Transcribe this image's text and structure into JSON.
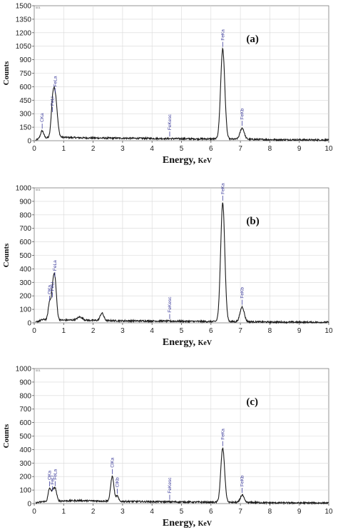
{
  "chart_data": [
    {
      "type": "line",
      "panel_label": "(a)",
      "corner_label": "001",
      "xlabel": "Energy,",
      "xunit": "KeV",
      "ylabel": "Counts",
      "xlim": [
        0,
        10
      ],
      "ylim": [
        0,
        1500
      ],
      "xticks": [
        "0",
        "1",
        "2",
        "3",
        "4",
        "5",
        "6",
        "7",
        "8",
        "9",
        "10"
      ],
      "yticks": [
        "0",
        "150",
        "300",
        "450",
        "600",
        "750",
        "900",
        "1050",
        "1200",
        "1350",
        "1500"
      ],
      "baseline": [
        [
          0.05,
          5
        ],
        [
          0.2,
          30
        ],
        [
          1.0,
          38
        ],
        [
          1.5,
          33
        ],
        [
          2.0,
          30
        ],
        [
          3.0,
          28
        ],
        [
          4.0,
          25
        ],
        [
          5.0,
          22
        ],
        [
          6.0,
          20
        ],
        [
          7.5,
          15
        ],
        [
          8.0,
          12
        ],
        [
          9.0,
          10
        ],
        [
          10.0,
          8
        ]
      ],
      "peaks": [
        {
          "label": "CKa",
          "x": 0.27,
          "y": 80,
          "w": 0.05
        },
        {
          "label": "FeLl",
          "x": 0.62,
          "y": 260,
          "w": 0.05
        },
        {
          "label": "FeLa",
          "x": 0.71,
          "y": 470,
          "w": 0.07
        },
        {
          "label": "FeKesc",
          "x": 4.6,
          "y": 0,
          "w": 0.1
        },
        {
          "label": "FeKa",
          "x": 6.4,
          "y": 1000,
          "w": 0.07
        },
        {
          "label": "FeKb",
          "x": 7.06,
          "y": 125,
          "w": 0.07
        }
      ]
    },
    {
      "type": "line",
      "panel_label": "(b)",
      "corner_label": "001",
      "xlabel": "Energy,",
      "xunit": "KeV",
      "ylabel": "Counts",
      "xlim": [
        0,
        10
      ],
      "ylim": [
        0,
        1000
      ],
      "xticks": [
        "0",
        "1",
        "2",
        "3",
        "4",
        "5",
        "6",
        "7",
        "8",
        "9",
        "10"
      ],
      "yticks": [
        "0",
        "100",
        "200",
        "300",
        "400",
        "500",
        "600",
        "700",
        "800",
        "900",
        "1000"
      ],
      "baseline": [
        [
          0.05,
          5
        ],
        [
          0.3,
          25
        ],
        [
          1.0,
          20
        ],
        [
          1.5,
          22
        ],
        [
          2.0,
          18
        ],
        [
          3.0,
          15
        ],
        [
          4.0,
          14
        ],
        [
          5.0,
          12
        ],
        [
          6.0,
          10
        ],
        [
          7.5,
          8
        ],
        [
          8.0,
          6
        ],
        [
          9.0,
          5
        ],
        [
          10.0,
          4
        ]
      ],
      "extra_peaks": [
        {
          "x": 1.55,
          "y": 22,
          "w": 0.08
        },
        {
          "x": 2.3,
          "y": 55,
          "w": 0.06
        }
      ],
      "peaks": [
        {
          "label": "OKa",
          "x": 0.52,
          "y": 125,
          "w": 0.045
        },
        {
          "label": "FeLl",
          "x": 0.62,
          "y": 150,
          "w": 0.045
        },
        {
          "label": "FeLa",
          "x": 0.7,
          "y": 300,
          "w": 0.055
        },
        {
          "label": "FeKesc",
          "x": 4.6,
          "y": 0,
          "w": 0.1
        },
        {
          "label": "FeKa",
          "x": 6.4,
          "y": 880,
          "w": 0.07
        },
        {
          "label": "FeKb",
          "x": 7.06,
          "y": 110,
          "w": 0.07
        }
      ]
    },
    {
      "type": "line",
      "panel_label": "(c)",
      "corner_label": "001",
      "xlabel": "Energy,",
      "xunit": "KeV",
      "ylabel": "Counts",
      "xlim": [
        0,
        10
      ],
      "ylim": [
        0,
        1000
      ],
      "xticks": [
        "0",
        "1",
        "2",
        "3",
        "4",
        "5",
        "6",
        "7",
        "8",
        "9",
        "10"
      ],
      "yticks": [
        "0",
        "100",
        "200",
        "300",
        "400",
        "500",
        "600",
        "700",
        "800",
        "900",
        "1000"
      ],
      "baseline": [
        [
          0.05,
          5
        ],
        [
          0.3,
          15
        ],
        [
          1.0,
          20
        ],
        [
          1.5,
          22
        ],
        [
          2.0,
          20
        ],
        [
          3.0,
          16
        ],
        [
          4.0,
          14
        ],
        [
          5.0,
          12
        ],
        [
          6.0,
          10
        ],
        [
          7.5,
          8
        ],
        [
          8.0,
          6
        ],
        [
          9.0,
          5
        ],
        [
          10.0,
          4
        ]
      ],
      "peaks": [
        {
          "label": "OKa",
          "x": 0.52,
          "y": 95,
          "w": 0.045
        },
        {
          "label": "FeLl",
          "x": 0.62,
          "y": 60,
          "w": 0.04
        },
        {
          "label": "FeLa",
          "x": 0.71,
          "y": 95,
          "w": 0.05
        },
        {
          "label": "ClKa",
          "x": 2.65,
          "y": 185,
          "w": 0.055
        },
        {
          "label": "ClKb",
          "x": 2.82,
          "y": 40,
          "w": 0.04
        },
        {
          "label": "FeKesc",
          "x": 4.6,
          "y": 0,
          "w": 0.1
        },
        {
          "label": "FeKa",
          "x": 6.4,
          "y": 400,
          "w": 0.065
        },
        {
          "label": "FeKb",
          "x": 7.06,
          "y": 55,
          "w": 0.06
        }
      ]
    }
  ]
}
